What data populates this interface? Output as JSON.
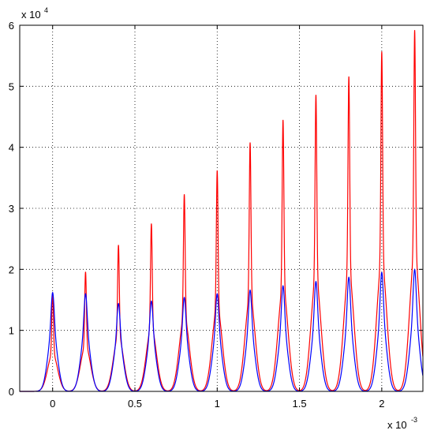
{
  "chart_data": {
    "type": "line",
    "title": "",
    "xlabel": "",
    "ylabel": "",
    "x_scale_label": {
      "base": "x 10",
      "exponent": "-3"
    },
    "y_scale_label": {
      "base": "x 10",
      "exponent": "4"
    },
    "xlim": [
      -0.2,
      2.25
    ],
    "ylim": [
      0,
      6
    ],
    "x_ticks": [
      0,
      0.5,
      1,
      1.5,
      2
    ],
    "x_tick_labels": [
      "0",
      "0.5",
      "1",
      "1.5",
      "2"
    ],
    "y_ticks": [
      0,
      1,
      2,
      3,
      4,
      5,
      6
    ],
    "y_tick_labels": [
      "0",
      "1",
      "2",
      "3",
      "4",
      "5",
      "6"
    ],
    "grid": "dotted",
    "peak_centers": [
      0,
      0.2,
      0.4,
      0.6,
      0.8,
      1.0,
      1.2,
      1.4,
      1.6,
      1.8,
      2.0,
      2.2
    ],
    "series": [
      {
        "color": "#ff0000",
        "peak_heights": [
          1.62,
          1.96,
          2.4,
          2.75,
          3.23,
          3.62,
          4.08,
          4.45,
          4.86,
          5.16,
          5.57,
          5.92
        ]
      },
      {
        "color": "#0000ff",
        "peak_heights": [
          1.62,
          1.6,
          1.44,
          1.48,
          1.54,
          1.6,
          1.66,
          1.73,
          1.8,
          1.87,
          1.95,
          2.0
        ]
      }
    ]
  }
}
